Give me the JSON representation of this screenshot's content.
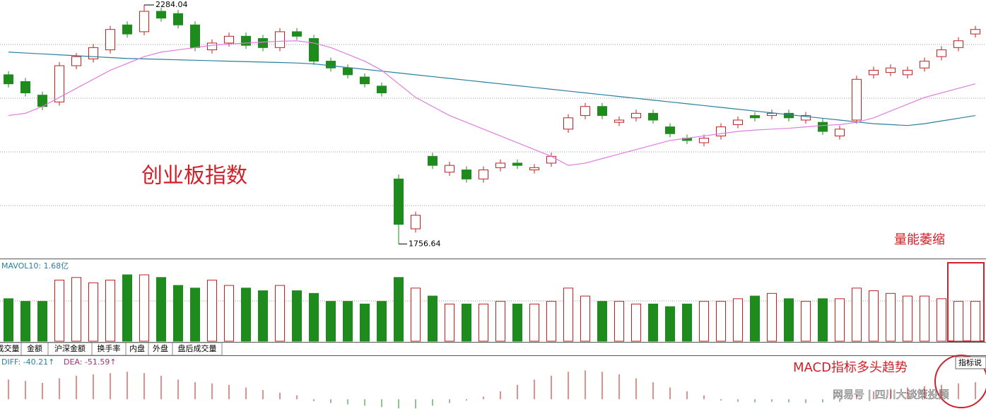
{
  "chart_data": {
    "type": "candlestick",
    "title": "创业板指数",
    "up_color": "#c81e1e",
    "down_color": "#1d8c1d",
    "ylim": [
      1726,
      2295
    ],
    "open": [
      2130,
      2115,
      2085,
      2070,
      2150,
      2165,
      2185,
      2240,
      2225,
      2270,
      2265,
      2240,
      2185,
      2200,
      2215,
      2210,
      2190,
      2225,
      2210,
      2160,
      2145,
      2125,
      2105,
      1900,
      1790,
      1950,
      1915,
      1920,
      1900,
      1925,
      1935,
      1920,
      1935,
      2010,
      2040,
      2060,
      2025,
      2035,
      2045,
      2015,
      1990,
      1980,
      1995,
      2020,
      2040,
      2040,
      2045,
      2030,
      2025,
      1995,
      2030,
      2130,
      2135,
      2130,
      2145,
      2170,
      2190,
      2220
    ],
    "high": [
      2138,
      2123,
      2093,
      2158,
      2178,
      2198,
      2238,
      2248,
      2284.04,
      2278,
      2273,
      2248,
      2208,
      2223,
      2223,
      2218,
      2233,
      2233,
      2218,
      2168,
      2153,
      2133,
      2113,
      1910,
      1828,
      1958,
      1938,
      1928,
      1928,
      1943,
      1943,
      1933,
      1958,
      2043,
      2068,
      2068,
      2038,
      2053,
      2053,
      2023,
      1998,
      1998,
      2023,
      2038,
      2048,
      2053,
      2053,
      2048,
      2033,
      2018,
      2128,
      2148,
      2153,
      2148,
      2168,
      2193,
      2213,
      2238
    ],
    "low": [
      2102,
      2082,
      2052,
      2062,
      2142,
      2157,
      2177,
      2212,
      2217,
      2247,
      2232,
      2182,
      2177,
      2192,
      2187,
      2182,
      2182,
      2207,
      2152,
      2137,
      2122,
      2102,
      2082,
      1756.64,
      1782,
      1922,
      1907,
      1892,
      1892,
      1917,
      1922,
      1912,
      1927,
      2002,
      2032,
      2032,
      2017,
      2027,
      2022,
      1992,
      1977,
      1972,
      1987,
      2012,
      2027,
      2032,
      2027,
      2022,
      1997,
      1987,
      2022,
      2122,
      2127,
      2122,
      2137,
      2162,
      2182,
      2212
    ],
    "close": [
      2110,
      2090,
      2060,
      2150,
      2170,
      2190,
      2230,
      2220,
      2270,
      2255,
      2240,
      2190,
      2200,
      2215,
      2195,
      2190,
      2225,
      2215,
      2160,
      2145,
      2130,
      2110,
      2090,
      1800,
      1820,
      1930,
      1930,
      1900,
      1920,
      1935,
      1930,
      1925,
      1950,
      2035,
      2060,
      2040,
      2030,
      2045,
      2030,
      2000,
      1985,
      1990,
      2015,
      2030,
      2035,
      2045,
      2035,
      2040,
      2005,
      2010,
      2120,
      2140,
      2145,
      2140,
      2160,
      2185,
      2205,
      2230
    ],
    "ma_lines": [
      {
        "color": "#2a7f9e",
        "values": [
          2180,
          2178,
          2176,
          2174,
          2172,
          2170,
          2168,
          2166,
          2165,
          2164,
          2163,
          2162,
          2161,
          2160,
          2159,
          2158,
          2157,
          2156,
          2154,
          2150,
          2146,
          2142,
          2138,
          2134,
          2130,
          2126,
          2122,
          2118,
          2114,
          2110,
          2106,
          2102,
          2098,
          2094,
          2090,
          2086,
          2082,
          2078,
          2074,
          2070,
          2066,
          2062,
          2058,
          2054,
          2050,
          2046,
          2042,
          2038,
          2034,
          2030,
          2026,
          2022,
          2020,
          2018,
          2022,
          2028,
          2034,
          2040
        ]
      },
      {
        "color": "#e07de0",
        "values": [
          2040,
          2045,
          2060,
          2080,
          2100,
          2120,
          2140,
          2155,
          2170,
          2180,
          2185,
          2190,
          2195,
          2198,
          2200,
          2202,
          2204,
          2205,
          2200,
          2190,
          2175,
          2160,
          2140,
          2110,
          2080,
          2060,
          2040,
          2025,
          2010,
          1995,
          1980,
          1965,
          1950,
          1930,
          1935,
          1945,
          1955,
          1965,
          1975,
          1985,
          1990,
          1995,
          2000,
          2005,
          2008,
          2010,
          2012,
          2015,
          2018,
          2020,
          2025,
          2035,
          2050,
          2065,
          2080,
          2090,
          2100,
          2110
        ]
      }
    ],
    "volume_title": "MAVOL10: 1.68亿",
    "volume_lim": [
      0,
      3.06
    ],
    "volume": [
      1.6,
      1.5,
      1.5,
      2.3,
      2.4,
      2.2,
      2.3,
      2.5,
      2.5,
      2.4,
      2.1,
      2.0,
      2.3,
      2.1,
      2.0,
      1.9,
      2.1,
      1.9,
      1.8,
      1.5,
      1.5,
      1.4,
      1.5,
      2.4,
      2.0,
      1.7,
      1.4,
      1.4,
      1.4,
      1.5,
      1.4,
      1.4,
      1.5,
      2.0,
      1.7,
      1.5,
      1.5,
      1.4,
      1.4,
      1.3,
      1.4,
      1.5,
      1.5,
      1.6,
      1.7,
      1.8,
      1.6,
      1.5,
      1.6,
      1.6,
      2.0,
      1.9,
      1.8,
      1.7,
      1.7,
      1.6,
      1.5,
      1.5
    ],
    "macd_diff": "DIFF: -40.21↑",
    "macd_dea": "DEA: -51.59↑",
    "macd_lim": [
      -15,
      65
    ],
    "macd": [
      30,
      28,
      25,
      32,
      36,
      38,
      40,
      42,
      40,
      36,
      30,
      26,
      24,
      22,
      18,
      14,
      10,
      6,
      -3,
      -6,
      -8,
      -10,
      -12,
      -14,
      -14,
      -10,
      -6,
      -2,
      4,
      12,
      22,
      30,
      36,
      42,
      44,
      42,
      38,
      32,
      26,
      18,
      12,
      6,
      -2,
      -4,
      -5,
      -4,
      -5,
      -6,
      -5,
      -4,
      6,
      12,
      16,
      18,
      20,
      22,
      24,
      26
    ]
  },
  "toolbar": {
    "tabs": [
      "成交量",
      "金额",
      "沪深金额",
      "换手率",
      "内盘",
      "外盘",
      "盘后成交量"
    ],
    "button": "指标说"
  },
  "notes": {
    "volume_note": "量能萎缩",
    "macd_note": "MACD指标多头趋势"
  },
  "watermark": "网易号 | 四川大谈策投顾"
}
